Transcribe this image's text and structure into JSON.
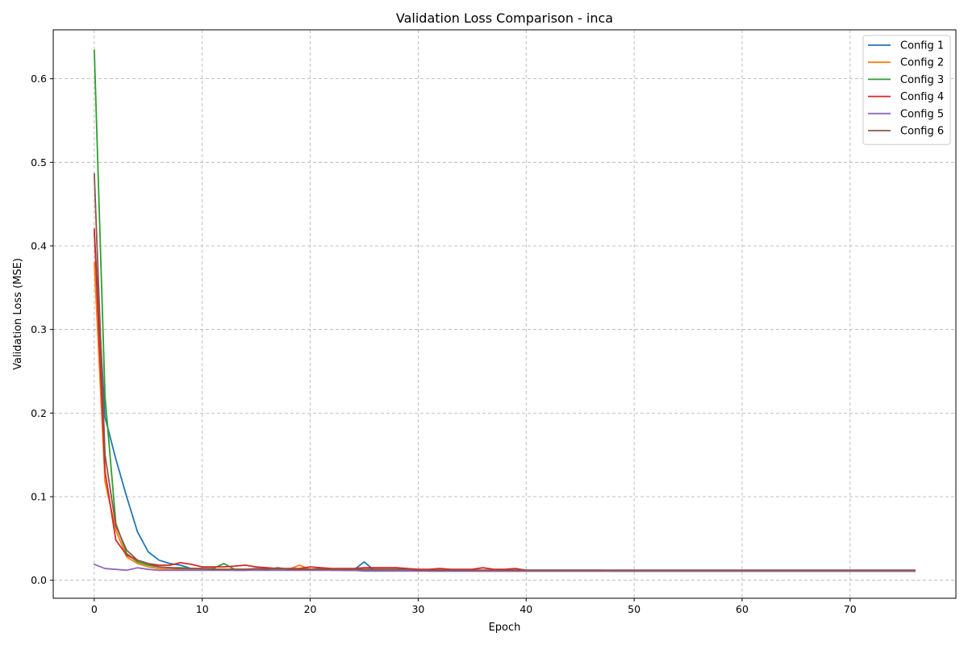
{
  "chart_data": {
    "type": "line",
    "title": "Validation Loss Comparison - inca",
    "xlabel": "Epoch",
    "ylabel": "Validation Loss (MSE)",
    "xlim": [
      -3.8,
      79.8
    ],
    "ylim": [
      -0.0215,
      0.6585
    ],
    "xticks": [
      0,
      10,
      20,
      30,
      40,
      50,
      60,
      70
    ],
    "yticks": [
      0.0,
      0.1,
      0.2,
      0.3,
      0.4,
      0.5,
      0.6
    ],
    "ytick_labels": [
      "0.0",
      "0.1",
      "0.2",
      "0.3",
      "0.4",
      "0.5",
      "0.6"
    ],
    "grid": true,
    "grid_style": "dashed",
    "legend_position": "top-right",
    "series": [
      {
        "name": "Config 1",
        "color": "#1f77b4",
        "values": [
          0.415,
          0.195,
          0.145,
          0.1,
          0.058,
          0.034,
          0.024,
          0.02,
          0.018,
          0.014,
          0.013,
          0.013,
          0.013,
          0.012,
          0.012,
          0.013,
          0.014,
          0.013,
          0.012,
          0.014,
          0.013,
          0.014,
          0.013,
          0.012,
          0.012,
          0.022,
          0.011,
          0.012,
          0.012,
          0.012,
          0.012,
          0.011,
          0.011,
          0.011,
          0.011,
          0.011,
          0.011,
          0.011,
          0.011,
          0.011,
          0.011,
          0.011,
          0.011,
          0.011,
          0.011,
          0.011,
          0.011,
          0.011,
          0.011,
          0.011,
          0.011,
          0.011,
          0.011,
          0.011,
          0.011,
          0.011,
          0.011,
          0.011,
          0.011,
          0.011,
          0.011,
          0.011,
          0.011,
          0.011,
          0.011,
          0.011,
          0.011,
          0.011,
          0.011,
          0.011,
          0.011,
          0.011,
          0.011,
          0.011,
          0.011,
          0.011,
          0.011
        ]
      },
      {
        "name": "Config 2",
        "color": "#ff7f0e",
        "values": [
          0.38,
          0.118,
          0.06,
          0.028,
          0.02,
          0.016,
          0.014,
          0.013,
          0.013,
          0.013,
          0.013,
          0.013,
          0.013,
          0.013,
          0.013,
          0.013,
          0.013,
          0.013,
          0.013,
          0.018,
          0.013,
          0.013,
          0.012,
          0.012,
          0.012,
          0.012,
          0.012,
          0.012,
          0.012,
          0.012,
          0.012,
          0.012,
          0.012,
          0.012,
          0.012,
          0.011,
          0.011,
          0.011,
          0.011,
          0.011,
          0.011,
          0.011,
          0.011,
          0.011,
          0.011,
          0.011,
          0.011,
          0.011,
          0.011,
          0.011,
          0.011,
          0.011,
          0.011,
          0.011,
          0.011,
          0.011,
          0.011,
          0.011,
          0.011,
          0.011,
          0.011,
          0.011,
          0.011,
          0.011,
          0.011,
          0.011,
          0.011,
          0.011,
          0.011,
          0.011,
          0.011,
          0.011,
          0.011,
          0.011,
          0.011,
          0.011,
          0.011
        ]
      },
      {
        "name": "Config 3",
        "color": "#2ca02c",
        "values": [
          0.634,
          0.22,
          0.068,
          0.032,
          0.022,
          0.018,
          0.016,
          0.015,
          0.015,
          0.014,
          0.014,
          0.014,
          0.02,
          0.013,
          0.013,
          0.013,
          0.013,
          0.013,
          0.013,
          0.013,
          0.013,
          0.013,
          0.013,
          0.012,
          0.012,
          0.012,
          0.012,
          0.012,
          0.012,
          0.012,
          0.012,
          0.012,
          0.012,
          0.012,
          0.012,
          0.012,
          0.012,
          0.012,
          0.012,
          0.012,
          0.012,
          0.012,
          0.012,
          0.012,
          0.012,
          0.012,
          0.012,
          0.012,
          0.011,
          0.011,
          0.011,
          0.011,
          0.011,
          0.011,
          0.011,
          0.011,
          0.011,
          0.011,
          0.011,
          0.011,
          0.011,
          0.011,
          0.011,
          0.011,
          0.011,
          0.011,
          0.011,
          0.011,
          0.011,
          0.011,
          0.011,
          0.011,
          0.011,
          0.011,
          0.011,
          0.011,
          0.011
        ]
      },
      {
        "name": "Config 4",
        "color": "#d62728",
        "values": [
          0.42,
          0.13,
          0.048,
          0.03,
          0.024,
          0.02,
          0.018,
          0.018,
          0.021,
          0.019,
          0.016,
          0.016,
          0.016,
          0.017,
          0.018,
          0.016,
          0.015,
          0.014,
          0.014,
          0.014,
          0.016,
          0.015,
          0.014,
          0.014,
          0.014,
          0.015,
          0.015,
          0.015,
          0.015,
          0.014,
          0.013,
          0.013,
          0.014,
          0.013,
          0.013,
          0.013,
          0.015,
          0.013,
          0.013,
          0.014,
          0.012,
          0.012,
          0.012,
          0.012,
          0.012,
          0.012,
          0.012,
          0.012,
          0.012,
          0.012,
          0.012,
          0.012,
          0.012,
          0.012,
          0.012,
          0.012,
          0.012,
          0.012,
          0.012,
          0.012,
          0.012,
          0.012,
          0.012,
          0.012,
          0.012,
          0.012,
          0.012,
          0.012,
          0.012,
          0.012,
          0.012,
          0.012,
          0.012,
          0.012,
          0.012,
          0.012,
          0.012
        ]
      },
      {
        "name": "Config 5",
        "color": "#9467bd",
        "values": [
          0.019,
          0.014,
          0.013,
          0.012,
          0.015,
          0.013,
          0.012,
          0.012,
          0.012,
          0.012,
          0.012,
          0.012,
          0.012,
          0.012,
          0.012,
          0.012,
          0.012,
          0.012,
          0.012,
          0.012,
          0.012,
          0.012,
          0.012,
          0.012,
          0.012,
          0.011,
          0.011,
          0.011,
          0.011,
          0.011,
          0.011,
          0.011,
          0.011,
          0.011,
          0.011,
          0.011,
          0.011,
          0.011,
          0.011,
          0.011,
          0.011,
          0.011,
          0.011,
          0.011,
          0.011,
          0.011,
          0.011,
          0.011,
          0.011,
          0.011,
          0.011,
          0.011,
          0.011,
          0.011,
          0.011,
          0.011,
          0.011,
          0.011,
          0.011,
          0.011,
          0.011,
          0.011,
          0.011,
          0.011,
          0.011,
          0.011,
          0.011,
          0.011,
          0.011,
          0.011,
          0.011,
          0.011,
          0.011,
          0.011,
          0.011,
          0.011,
          0.011
        ]
      },
      {
        "name": "Config 6",
        "color": "#8c564b",
        "values": [
          0.486,
          0.15,
          0.065,
          0.036,
          0.024,
          0.02,
          0.016,
          0.015,
          0.014,
          0.014,
          0.014,
          0.013,
          0.013,
          0.013,
          0.013,
          0.014,
          0.013,
          0.015,
          0.013,
          0.013,
          0.013,
          0.013,
          0.013,
          0.013,
          0.013,
          0.013,
          0.013,
          0.013,
          0.013,
          0.013,
          0.012,
          0.012,
          0.012,
          0.012,
          0.012,
          0.012,
          0.012,
          0.012,
          0.012,
          0.012,
          0.012,
          0.012,
          0.012,
          0.012,
          0.012,
          0.012,
          0.012,
          0.012,
          0.012,
          0.012,
          0.012,
          0.012,
          0.012,
          0.012,
          0.012,
          0.012,
          0.012,
          0.012,
          0.012,
          0.012,
          0.012,
          0.012,
          0.012,
          0.012,
          0.012,
          0.012,
          0.012,
          0.012,
          0.012,
          0.012,
          0.012,
          0.012,
          0.012,
          0.012,
          0.012,
          0.012,
          0.012
        ]
      }
    ]
  }
}
